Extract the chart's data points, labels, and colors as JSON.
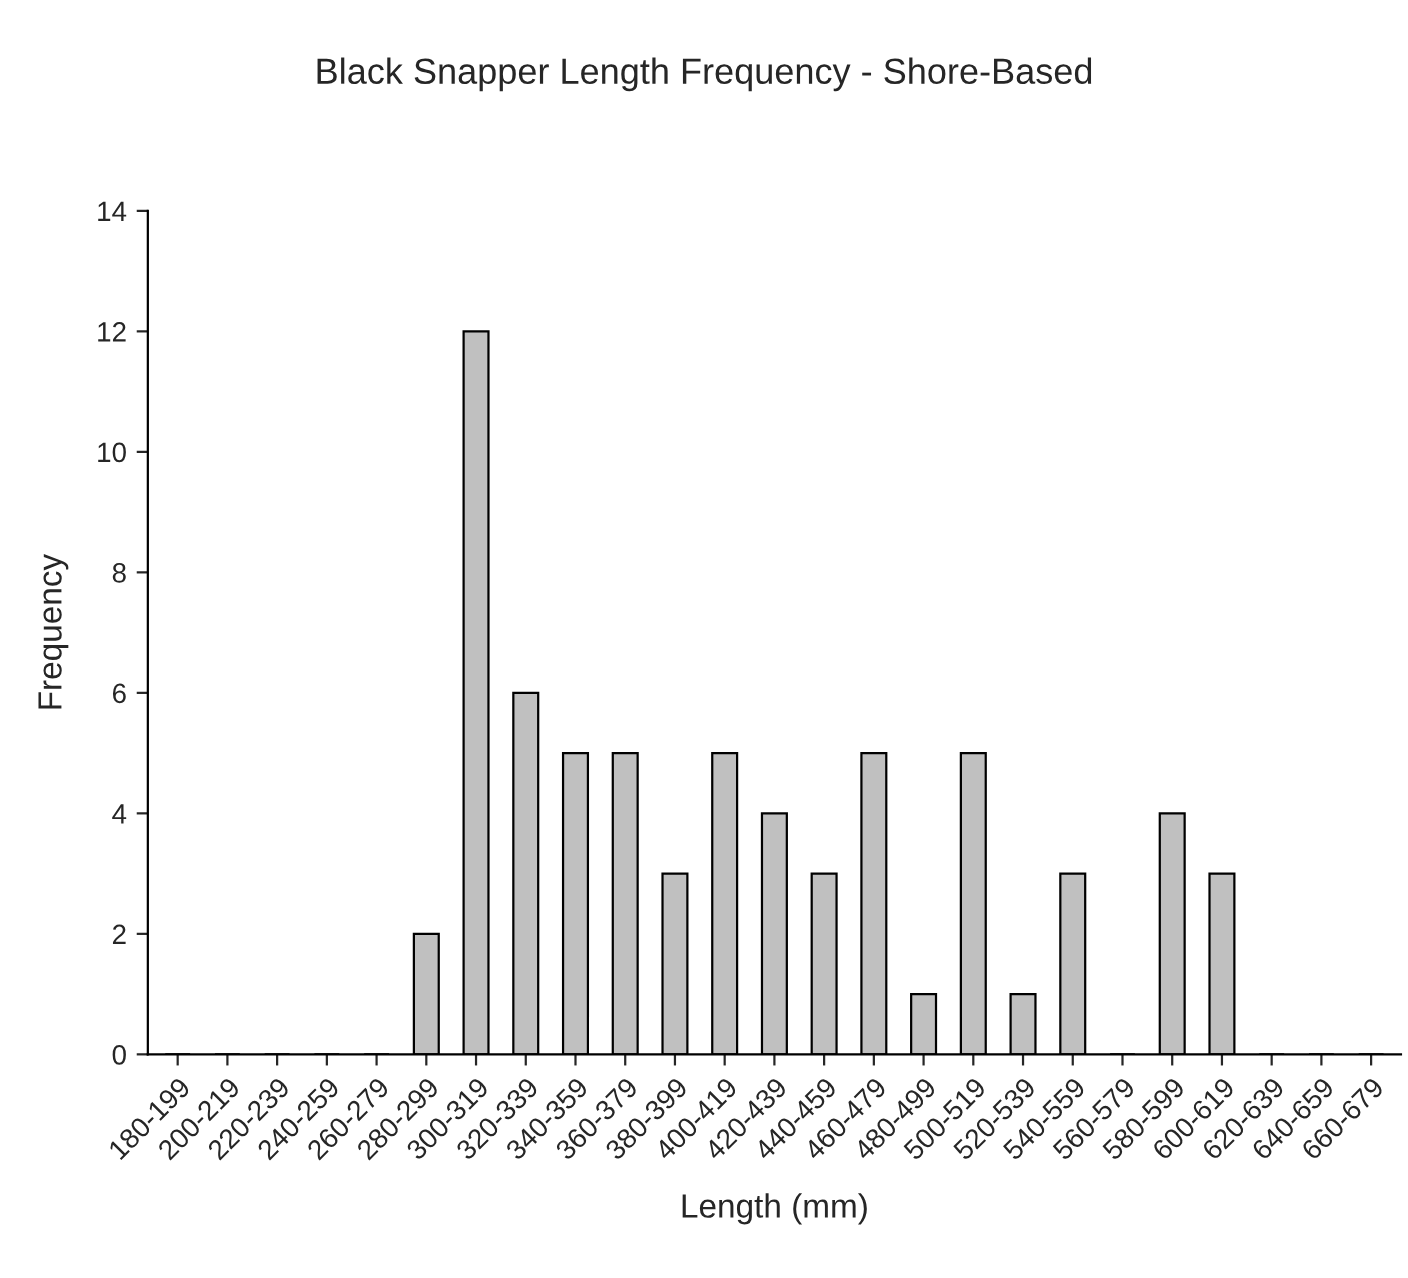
{
  "chart_data": {
    "type": "bar",
    "title": "Black Snapper Length Frequency - Shore-Based",
    "xlabel": "Length (mm)",
    "ylabel": "Frequency",
    "categories": [
      "180-199",
      "200-219",
      "220-239",
      "240-259",
      "260-279",
      "280-299",
      "300-319",
      "320-339",
      "340-359",
      "360-379",
      "380-399",
      "400-419",
      "420-439",
      "440-459",
      "460-479",
      "480-499",
      "500-519",
      "520-539",
      "540-559",
      "560-579",
      "580-599",
      "600-619",
      "620-639",
      "640-659",
      "660-679"
    ],
    "values": [
      0,
      0,
      0,
      0,
      0,
      2,
      12,
      6,
      5,
      5,
      3,
      5,
      4,
      3,
      5,
      1,
      5,
      1,
      3,
      0,
      4,
      3,
      0,
      0,
      0
    ],
    "color": "#c0c0c0",
    "ylim": [
      0,
      14
    ],
    "yticks": [
      0,
      2,
      4,
      6,
      8,
      10,
      12,
      14
    ],
    "grid": false,
    "legend": false
  }
}
